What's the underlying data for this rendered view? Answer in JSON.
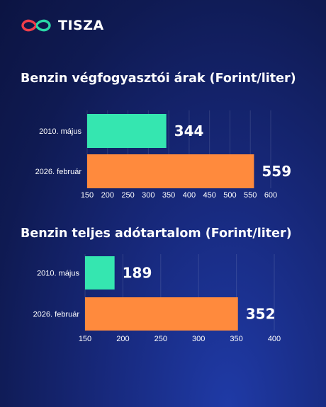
{
  "brand": {
    "name": "TISZA",
    "logo_colors": [
      "#ef3e4a",
      "#2ad8a6"
    ]
  },
  "colors": {
    "green_bar": "#35e6b0",
    "orange_bar": "#ff8a3d"
  },
  "chart_data": [
    {
      "type": "bar",
      "orientation": "horizontal",
      "title": "Benzin végfogyasztói árak (Forint/liter)",
      "categories": [
        "2010. május",
        "2026. február"
      ],
      "values": [
        344,
        559
      ],
      "value_labels": [
        "344",
        "559"
      ],
      "bar_colors": [
        "#35e6b0",
        "#ff8a3d"
      ],
      "xlim": [
        150,
        600
      ],
      "xticks": [
        150,
        200,
        250,
        300,
        350,
        400,
        450,
        500,
        550,
        600
      ],
      "grid": true
    },
    {
      "type": "bar",
      "orientation": "horizontal",
      "title": "Benzin teljes adótartalom (Forint/liter)",
      "categories": [
        "2010. május",
        "2026. február"
      ],
      "values": [
        189,
        352
      ],
      "value_labels": [
        "189",
        "352"
      ],
      "bar_colors": [
        "#35e6b0",
        "#ff8a3d"
      ],
      "xlim": [
        150,
        400
      ],
      "xticks": [
        150,
        200,
        250,
        300,
        350,
        400
      ],
      "grid": true
    }
  ]
}
